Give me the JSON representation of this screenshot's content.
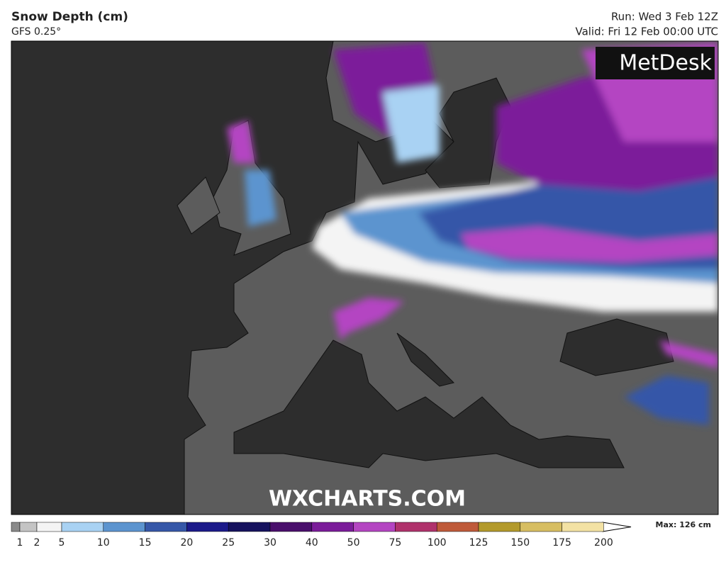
{
  "header": {
    "title": "Snow Depth (cm)",
    "subtitle": "GFS 0.25°",
    "run": "Run: Wed 3 Feb 12Z",
    "valid": "Valid: Fri 12 Feb 00:00 UTC"
  },
  "logo": "MetDesk",
  "watermark": "WXCHARTS.COM",
  "legend": {
    "ticks": [
      1,
      2,
      5,
      10,
      15,
      20,
      25,
      30,
      40,
      50,
      75,
      100,
      125,
      150,
      175,
      200
    ],
    "colors": [
      "#8a8a8a",
      "#c4c4c4",
      "#f4f4f4",
      "#a9d2f3",
      "#5c94cf",
      "#3657a8",
      "#1c1a8a",
      "#16125e",
      "#4a0f6c",
      "#7b1c9a",
      "#b445c2",
      "#b0326c",
      "#bf5a3a",
      "#b39a2c",
      "#d7be62",
      "#f3e2a4"
    ],
    "max_label": "Max: 126 cm"
  }
}
